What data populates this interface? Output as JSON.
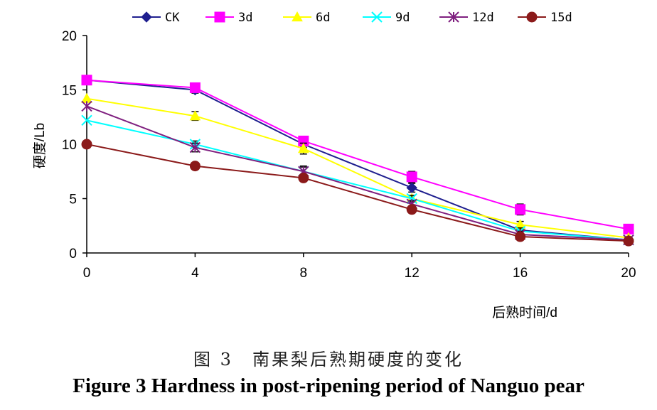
{
  "chart_data": {
    "type": "line",
    "title": "",
    "xlabel": "后熟时间/d",
    "ylabel": "硬度/Lb",
    "x": [
      0,
      4,
      8,
      12,
      16,
      20
    ],
    "xticks": [
      "0",
      "4",
      "8",
      "12",
      "16",
      "20"
    ],
    "yticks": [
      "0",
      "5",
      "10",
      "15",
      "20"
    ],
    "xlim": [
      0,
      20
    ],
    "ylim": [
      0,
      20
    ],
    "grid": false,
    "legend_position": "top",
    "series": [
      {
        "name": "CK",
        "color": "#1f1f8f",
        "marker": "diamond",
        "values": [
          15.9,
          15.0,
          10.0,
          6.0,
          2.1,
          1.2
        ]
      },
      {
        "name": "3d",
        "color": "#ff00ff",
        "marker": "square",
        "values": [
          15.9,
          15.2,
          10.3,
          7.0,
          4.0,
          2.2
        ]
      },
      {
        "name": "6d",
        "color": "#ffff00",
        "marker": "triangle",
        "values": [
          14.2,
          12.6,
          9.6,
          5.0,
          2.6,
          1.4
        ]
      },
      {
        "name": "9d",
        "color": "#00ffff",
        "marker": "x",
        "values": [
          12.2,
          10.0,
          7.5,
          5.0,
          2.0,
          1.2
        ]
      },
      {
        "name": "12d",
        "color": "#7f1f7f",
        "marker": "star",
        "values": [
          13.5,
          9.7,
          7.5,
          4.5,
          1.7,
          1.2
        ]
      },
      {
        "name": "15d",
        "color": "#8b1a1a",
        "marker": "circle",
        "values": [
          10.0,
          8.0,
          6.9,
          4.0,
          1.5,
          1.1
        ]
      }
    ],
    "error_bars": {
      "CK": [
        0,
        0.3,
        0.3,
        0.4,
        0.3,
        0
      ],
      "3d": [
        0,
        0.3,
        0.3,
        0.5,
        0.5,
        0
      ],
      "6d": [
        0,
        0.4,
        0.5,
        0.3,
        0.3,
        0
      ],
      "9d": [
        0,
        0.3,
        0.4,
        0.3,
        0.3,
        0
      ],
      "12d": [
        0,
        0.4,
        0.5,
        0.3,
        0.3,
        0
      ],
      "15d": [
        0,
        0.3,
        0.3,
        0.3,
        0.2,
        0
      ]
    }
  },
  "caption": {
    "chinese": "图 3　南果梨后熟期硬度的变化",
    "english": "Figure 3    Hardness in post-ripening period of Nanguo pear"
  }
}
